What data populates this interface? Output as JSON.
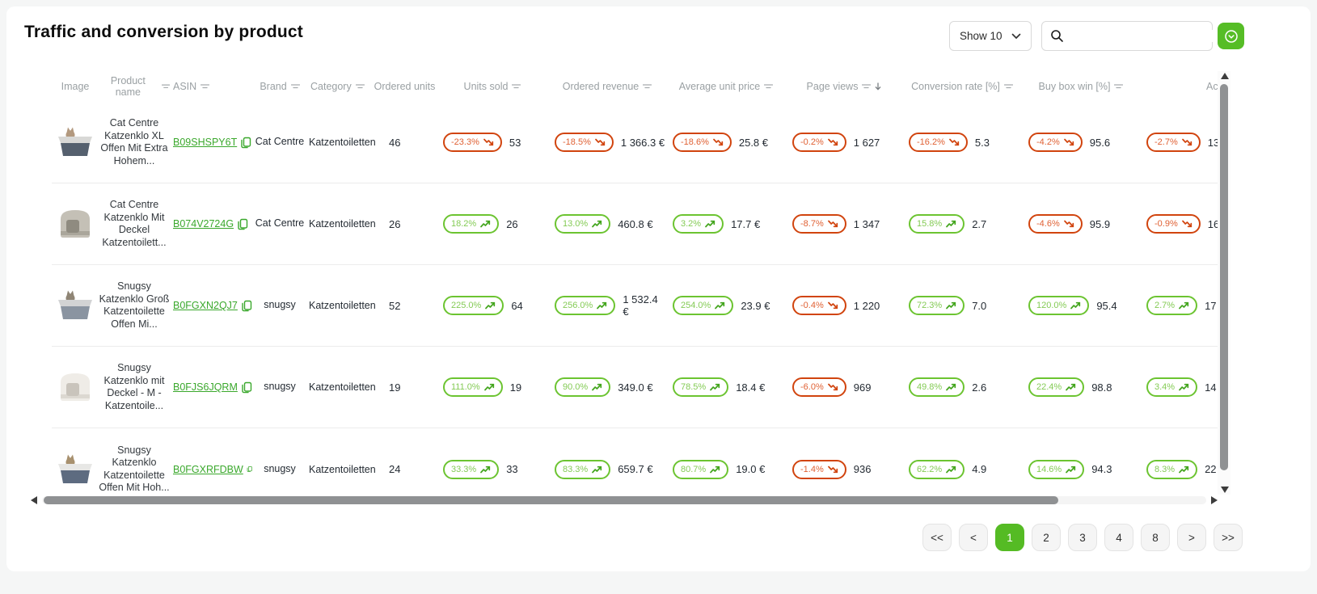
{
  "page": {
    "title": "Traffic and conversion by product"
  },
  "controls": {
    "show_select": {
      "label": "Show 10"
    },
    "search": {
      "value": "",
      "placeholder": ""
    }
  },
  "colors": {
    "accent_green": "#56bd26",
    "active_page_bg": "#55bb24",
    "link_green": "#3aa82c",
    "positive_border": "#6cc431",
    "positive_text": "#84cb55",
    "positive_arrow": "#43a51d",
    "negative_border": "#d1440e",
    "negative_text": "#e06134",
    "negative_arrow": "#d1440e"
  },
  "table": {
    "columns": [
      {
        "key": "image",
        "label": "Image",
        "filter": false
      },
      {
        "key": "product_name",
        "label": "Product name",
        "filter": true
      },
      {
        "key": "asin",
        "label": "ASIN",
        "filter": true
      },
      {
        "key": "brand",
        "label": "Brand",
        "filter": true
      },
      {
        "key": "category",
        "label": "Category",
        "filter": true
      },
      {
        "key": "ordered_units",
        "label": "Ordered units",
        "filter": true
      },
      {
        "key": "units_sold",
        "label": "Units sold",
        "filter": true
      },
      {
        "key": "ordered_revenue",
        "label": "Ordered revenue",
        "filter": true
      },
      {
        "key": "avg_unit_price",
        "label": "Average unit price",
        "filter": true
      },
      {
        "key": "page_views",
        "label": "Page views",
        "filter": true,
        "sorted": "desc"
      },
      {
        "key": "conversion_rate",
        "label": "Conversion rate [%]",
        "filter": true
      },
      {
        "key": "buy_box_win",
        "label": "Buy box win [%]",
        "filter": true
      },
      {
        "key": "extra",
        "label": "Ac",
        "filter": false,
        "truncated": true
      }
    ],
    "rows": [
      {
        "product_name": "Cat Centre Katzenklo XL Offen Mit Extra Hohem...",
        "asin": "B09SHSPY6T",
        "brand": "Cat Centre",
        "category": "Katzentoiletten",
        "ordered_units": "46",
        "units_sold": {
          "change": "-23.3%",
          "dir": "down",
          "value": "53"
        },
        "ordered_revenue": {
          "change": "-18.5%",
          "dir": "down",
          "value": "1 366.3 €"
        },
        "avg_unit_price": {
          "change": "-18.6%",
          "dir": "down",
          "value": "25.8 €"
        },
        "page_views": {
          "change": "-0.2%",
          "dir": "down",
          "value": "1 627"
        },
        "conversion_rate": {
          "change": "-16.2%",
          "dir": "down",
          "value": "5.3"
        },
        "buy_box_win": {
          "change": "-4.2%",
          "dir": "down",
          "value": "95.6"
        },
        "extra": {
          "change": "-2.7%",
          "dir": "down",
          "value": "13"
        },
        "image": {
          "style": "open",
          "body": "#55606e",
          "lid": "#d8d8d6",
          "cat": "#b3997f"
        }
      },
      {
        "product_name": "Cat Centre Katzenklo Mit Deckel Katzentoilett...",
        "asin": "B074V2724G",
        "brand": "Cat Centre",
        "category": "Katzentoiletten",
        "ordered_units": "26",
        "units_sold": {
          "change": "18.2%",
          "dir": "up",
          "value": "26"
        },
        "ordered_revenue": {
          "change": "13.0%",
          "dir": "up",
          "value": "460.8 €"
        },
        "avg_unit_price": {
          "change": "3.2%",
          "dir": "up",
          "value": "17.7 €"
        },
        "page_views": {
          "change": "-8.7%",
          "dir": "down",
          "value": "1 347"
        },
        "conversion_rate": {
          "change": "15.8%",
          "dir": "up",
          "value": "2.7"
        },
        "buy_box_win": {
          "change": "-4.6%",
          "dir": "down",
          "value": "95.9"
        },
        "extra": {
          "change": "-0.9%",
          "dir": "down",
          "value": "16"
        },
        "image": {
          "style": "hooded",
          "body": "#c4c0b6",
          "lid": "#8f8b80",
          "cat": "#b3997f"
        }
      },
      {
        "product_name": "Snugsy Katzenklo Groß Katzentoilette Offen Mi...",
        "asin": "B0FGXN2QJ7",
        "brand": "snugsy",
        "category": "Katzentoiletten",
        "ordered_units": "52",
        "units_sold": {
          "change": "225.0%",
          "dir": "up",
          "value": "64"
        },
        "ordered_revenue": {
          "change": "256.0%",
          "dir": "up",
          "value": "1 532.4 €"
        },
        "avg_unit_price": {
          "change": "254.0%",
          "dir": "up",
          "value": "23.9 €"
        },
        "page_views": {
          "change": "-0.4%",
          "dir": "down",
          "value": "1 220"
        },
        "conversion_rate": {
          "change": "72.3%",
          "dir": "up",
          "value": "7.0"
        },
        "buy_box_win": {
          "change": "120.0%",
          "dir": "up",
          "value": "95.4"
        },
        "extra": {
          "change": "2.7%",
          "dir": "up",
          "value": "17"
        },
        "image": {
          "style": "open",
          "body": "#8a94a1",
          "lid": "#d2d3d4",
          "cat": "#8f8575"
        }
      },
      {
        "product_name": "Snugsy Katzenklo mit Deckel - M - Katzentoile...",
        "asin": "B0FJS6JQRM",
        "brand": "snugsy",
        "category": "Katzentoiletten",
        "ordered_units": "19",
        "units_sold": {
          "change": "111.0%",
          "dir": "up",
          "value": "19"
        },
        "ordered_revenue": {
          "change": "90.0%",
          "dir": "up",
          "value": "349.0 €"
        },
        "avg_unit_price": {
          "change": "78.5%",
          "dir": "up",
          "value": "18.4 €"
        },
        "page_views": {
          "change": "-6.0%",
          "dir": "down",
          "value": "969"
        },
        "conversion_rate": {
          "change": "49.8%",
          "dir": "up",
          "value": "2.6"
        },
        "buy_box_win": {
          "change": "22.4%",
          "dir": "up",
          "value": "98.8"
        },
        "extra": {
          "change": "3.4%",
          "dir": "up",
          "value": "14"
        },
        "image": {
          "style": "hooded",
          "body": "#efece7",
          "lid": "#c9c4bc",
          "cat": "#b3997f"
        }
      },
      {
        "product_name": "Snugsy Katzenklo Katzentoilette Offen Mit Hoh...",
        "asin": "B0FGXRFDBW",
        "brand": "snugsy",
        "category": "Katzentoiletten",
        "ordered_units": "24",
        "units_sold": {
          "change": "33.3%",
          "dir": "up",
          "value": "33"
        },
        "ordered_revenue": {
          "change": "83.3%",
          "dir": "up",
          "value": "659.7 €"
        },
        "avg_unit_price": {
          "change": "80.7%",
          "dir": "up",
          "value": "19.0 €"
        },
        "page_views": {
          "change": "-1.4%",
          "dir": "down",
          "value": "936"
        },
        "conversion_rate": {
          "change": "62.2%",
          "dir": "up",
          "value": "4.9"
        },
        "buy_box_win": {
          "change": "14.6%",
          "dir": "up",
          "value": "94.3"
        },
        "extra": {
          "change": "8.3%",
          "dir": "up",
          "value": "22"
        },
        "image": {
          "style": "open",
          "body": "#5d6b80",
          "lid": "#e7e7e5",
          "cat": "#a8916f"
        }
      }
    ]
  },
  "pagination": {
    "items": [
      "<<",
      "<",
      "1",
      "2",
      "3",
      "4",
      "8",
      ">",
      ">>"
    ],
    "active": "1"
  }
}
